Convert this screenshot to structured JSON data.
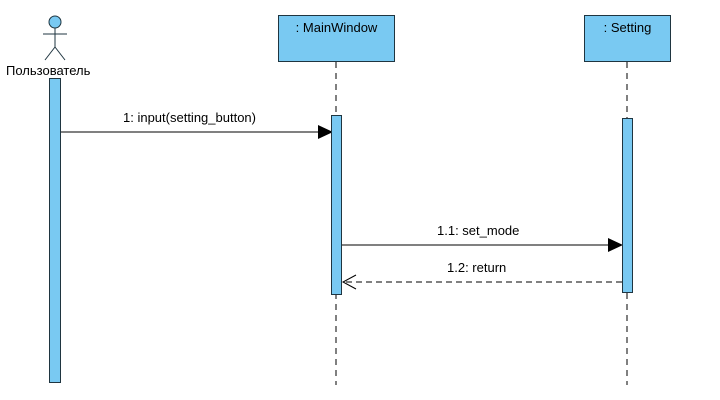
{
  "actor": {
    "label": "Пользователь"
  },
  "lifelines": [
    {
      "label": ": MainWindow"
    },
    {
      "label": ": Setting"
    }
  ],
  "messages": [
    {
      "label": "1: input(setting_button)",
      "kind": "sync"
    },
    {
      "label": "1.1: set_mode",
      "kind": "sync"
    },
    {
      "label": "1.2: return",
      "kind": "return"
    }
  ],
  "colors": {
    "fill": "#79c9f2",
    "stroke": "#1f3540",
    "line": "#000000"
  }
}
